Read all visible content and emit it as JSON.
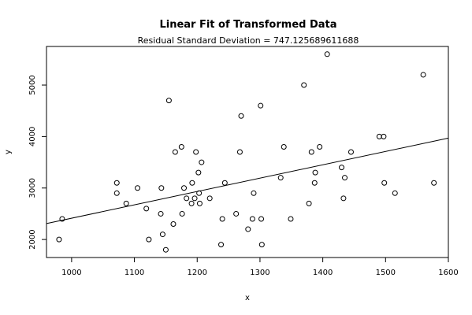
{
  "chart_data": {
    "type": "scatter",
    "title": "Linear Fit of Transformed Data",
    "subtitle": "Residual Standard Deviation =  747.125689611688",
    "xlabel": "x",
    "ylabel": "y",
    "xlim": [
      960,
      1600
    ],
    "ylim": [
      1650,
      5750
    ],
    "xticks": [
      1000,
      1100,
      1200,
      1300,
      1400,
      1500,
      1600
    ],
    "yticks": [
      2000,
      3000,
      4000,
      5000
    ],
    "grid": false,
    "fit_line": {
      "x": [
        960,
        1600
      ],
      "y": [
        2310,
        3970
      ]
    },
    "points": [
      [
        980,
        2000
      ],
      [
        985,
        2400
      ],
      [
        1072,
        3100
      ],
      [
        1072,
        2900
      ],
      [
        1087,
        2700
      ],
      [
        1105,
        3000
      ],
      [
        1119,
        2600
      ],
      [
        1123,
        2000
      ],
      [
        1142,
        2500
      ],
      [
        1143,
        3000
      ],
      [
        1145,
        2100
      ],
      [
        1150,
        1800
      ],
      [
        1155,
        4700
      ],
      [
        1162,
        2300
      ],
      [
        1165,
        3700
      ],
      [
        1175,
        3800
      ],
      [
        1176,
        2500
      ],
      [
        1179,
        3000
      ],
      [
        1183,
        2800
      ],
      [
        1191,
        2700
      ],
      [
        1192,
        3100
      ],
      [
        1196,
        2800
      ],
      [
        1198,
        3700
      ],
      [
        1202,
        3300
      ],
      [
        1203,
        2900
      ],
      [
        1204,
        2700
      ],
      [
        1207,
        3500
      ],
      [
        1220,
        2800
      ],
      [
        1238,
        1900
      ],
      [
        1240,
        2400
      ],
      [
        1244,
        3100
      ],
      [
        1262,
        2500
      ],
      [
        1268,
        3700
      ],
      [
        1270,
        4400
      ],
      [
        1281,
        2200
      ],
      [
        1288,
        2400
      ],
      [
        1290,
        2900
      ],
      [
        1301,
        4600
      ],
      [
        1302,
        2400
      ],
      [
        1303,
        1900
      ],
      [
        1333,
        3200
      ],
      [
        1338,
        3800
      ],
      [
        1349,
        2400
      ],
      [
        1370,
        5000
      ],
      [
        1378,
        2700
      ],
      [
        1382,
        3700
      ],
      [
        1387,
        3100
      ],
      [
        1388,
        3300
      ],
      [
        1395,
        3800
      ],
      [
        1407,
        5600
      ],
      [
        1430,
        3400
      ],
      [
        1433,
        2800
      ],
      [
        1435,
        3200
      ],
      [
        1445,
        3700
      ],
      [
        1490,
        4000
      ],
      [
        1497,
        4000
      ],
      [
        1498,
        3100
      ],
      [
        1515,
        2900
      ],
      [
        1560,
        5200
      ],
      [
        1577,
        3100
      ]
    ]
  }
}
